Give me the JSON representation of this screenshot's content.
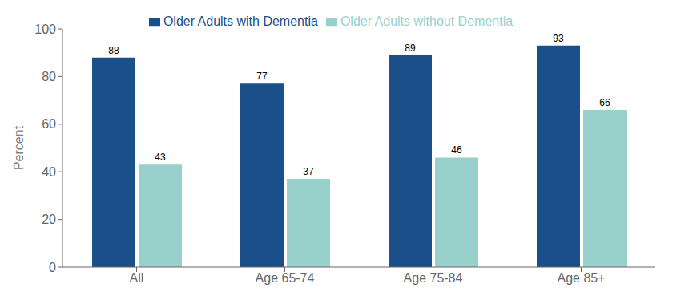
{
  "chart_data": {
    "type": "bar",
    "categories": [
      "All",
      "Age 65-74",
      "Age 75-84",
      "Age 85+"
    ],
    "series": [
      {
        "name": "Older Adults with Dementia",
        "color": "#1b4f8a",
        "values": [
          88,
          77,
          89,
          93
        ]
      },
      {
        "name": "Older Adults without Dementia",
        "color": "#98d0cc",
        "values": [
          43,
          37,
          46,
          66
        ]
      }
    ],
    "ylabel": "Percent",
    "ylim": [
      0,
      100
    ],
    "yticks": [
      0,
      20,
      40,
      60,
      80,
      100
    ],
    "grid": false,
    "legend": "top",
    "data_labels": true
  }
}
